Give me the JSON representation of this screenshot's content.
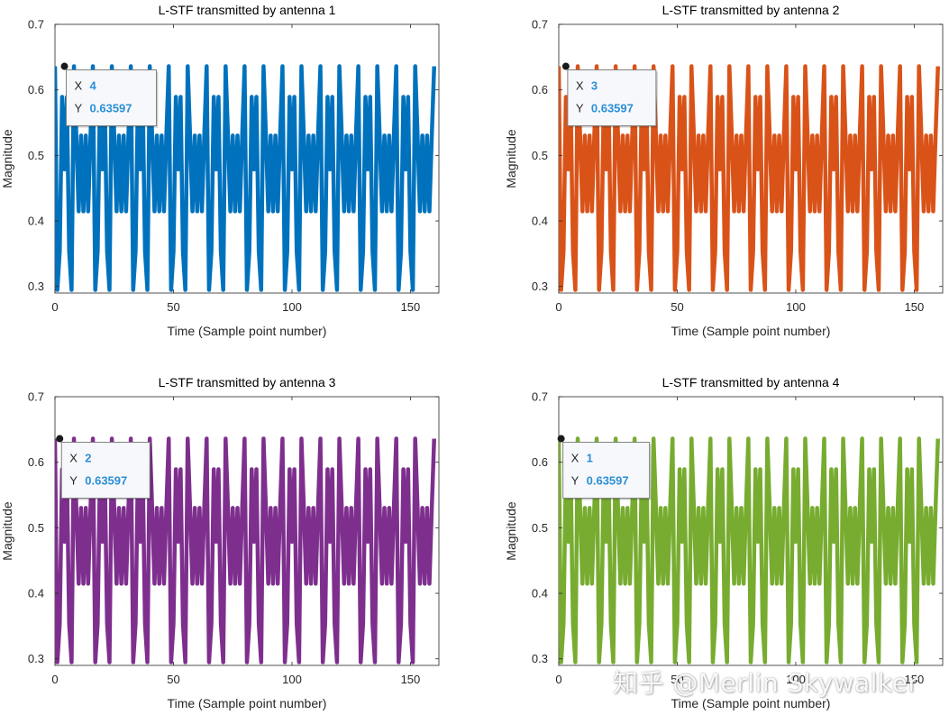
{
  "watermark": "知乎 @Merlin Skywalker",
  "chart_data": [
    {
      "type": "line",
      "title": "L-STF transmitted by antenna 1",
      "xlabel": "Time (Sample point number)",
      "ylabel": "Magnitude",
      "xlim": [
        0,
        162
      ],
      "ylim": [
        0.29,
        0.7
      ],
      "xticks": [
        0,
        50,
        100,
        150
      ],
      "yticks": [
        0.3,
        0.4,
        0.5,
        0.6,
        0.7
      ],
      "ytick_labels": [
        "0.3",
        "0.4",
        "0.5",
        "0.6",
        "0.7"
      ],
      "color": "#0072BD",
      "levels": [
        0.2948,
        0.3535,
        0.4147,
        0.4787,
        0.5302,
        0.5893,
        0.636
      ],
      "datatip": {
        "x_label": "X",
        "x": "4",
        "y_label": "Y",
        "y": "0.63597"
      }
    },
    {
      "type": "line",
      "title": "L-STF transmitted by antenna 2",
      "xlabel": "Time (Sample point number)",
      "ylabel": "Magnitude",
      "xlim": [
        0,
        162
      ],
      "ylim": [
        0.29,
        0.7
      ],
      "xticks": [
        0,
        50,
        100,
        150
      ],
      "yticks": [
        0.3,
        0.4,
        0.5,
        0.6,
        0.7
      ],
      "ytick_labels": [
        "0.3",
        "0.4",
        "0.5",
        "0.6",
        "0.7"
      ],
      "color": "#D95319",
      "levels": [
        0.2948,
        0.3535,
        0.4147,
        0.4787,
        0.5302,
        0.5893,
        0.636
      ],
      "datatip": {
        "x_label": "X",
        "x": "3",
        "y_label": "Y",
        "y": "0.63597"
      }
    },
    {
      "type": "line",
      "title": "L-STF transmitted by antenna 3",
      "xlabel": "Time (Sample point number)",
      "ylabel": "Magnitude",
      "xlim": [
        0,
        162
      ],
      "ylim": [
        0.29,
        0.7
      ],
      "xticks": [
        0,
        50,
        100,
        150
      ],
      "yticks": [
        0.3,
        0.4,
        0.5,
        0.6,
        0.7
      ],
      "ytick_labels": [
        "0.3",
        "0.4",
        "0.5",
        "0.6",
        "0.7"
      ],
      "color": "#7E2F8E",
      "levels": [
        0.2948,
        0.3535,
        0.4147,
        0.4787,
        0.5302,
        0.5893,
        0.636
      ],
      "datatip": {
        "x_label": "X",
        "x": "2",
        "y_label": "Y",
        "y": "0.63597"
      }
    },
    {
      "type": "line",
      "title": "L-STF transmitted by antenna 4",
      "xlabel": "Time (Sample point number)",
      "ylabel": "Magnitude",
      "xlim": [
        0,
        162
      ],
      "ylim": [
        0.29,
        0.7
      ],
      "xticks": [
        0,
        50,
        100,
        150
      ],
      "yticks": [
        0.3,
        0.4,
        0.5,
        0.6,
        0.7
      ],
      "ytick_labels": [
        "0.3",
        "0.4",
        "0.5",
        "0.6",
        "0.7"
      ],
      "color": "#77AC30",
      "levels": [
        0.2948,
        0.3535,
        0.4147,
        0.4787,
        0.5302,
        0.5893,
        0.636
      ],
      "datatip": {
        "x_label": "X",
        "x": "1",
        "y_label": "Y",
        "y": "0.63597"
      }
    }
  ]
}
